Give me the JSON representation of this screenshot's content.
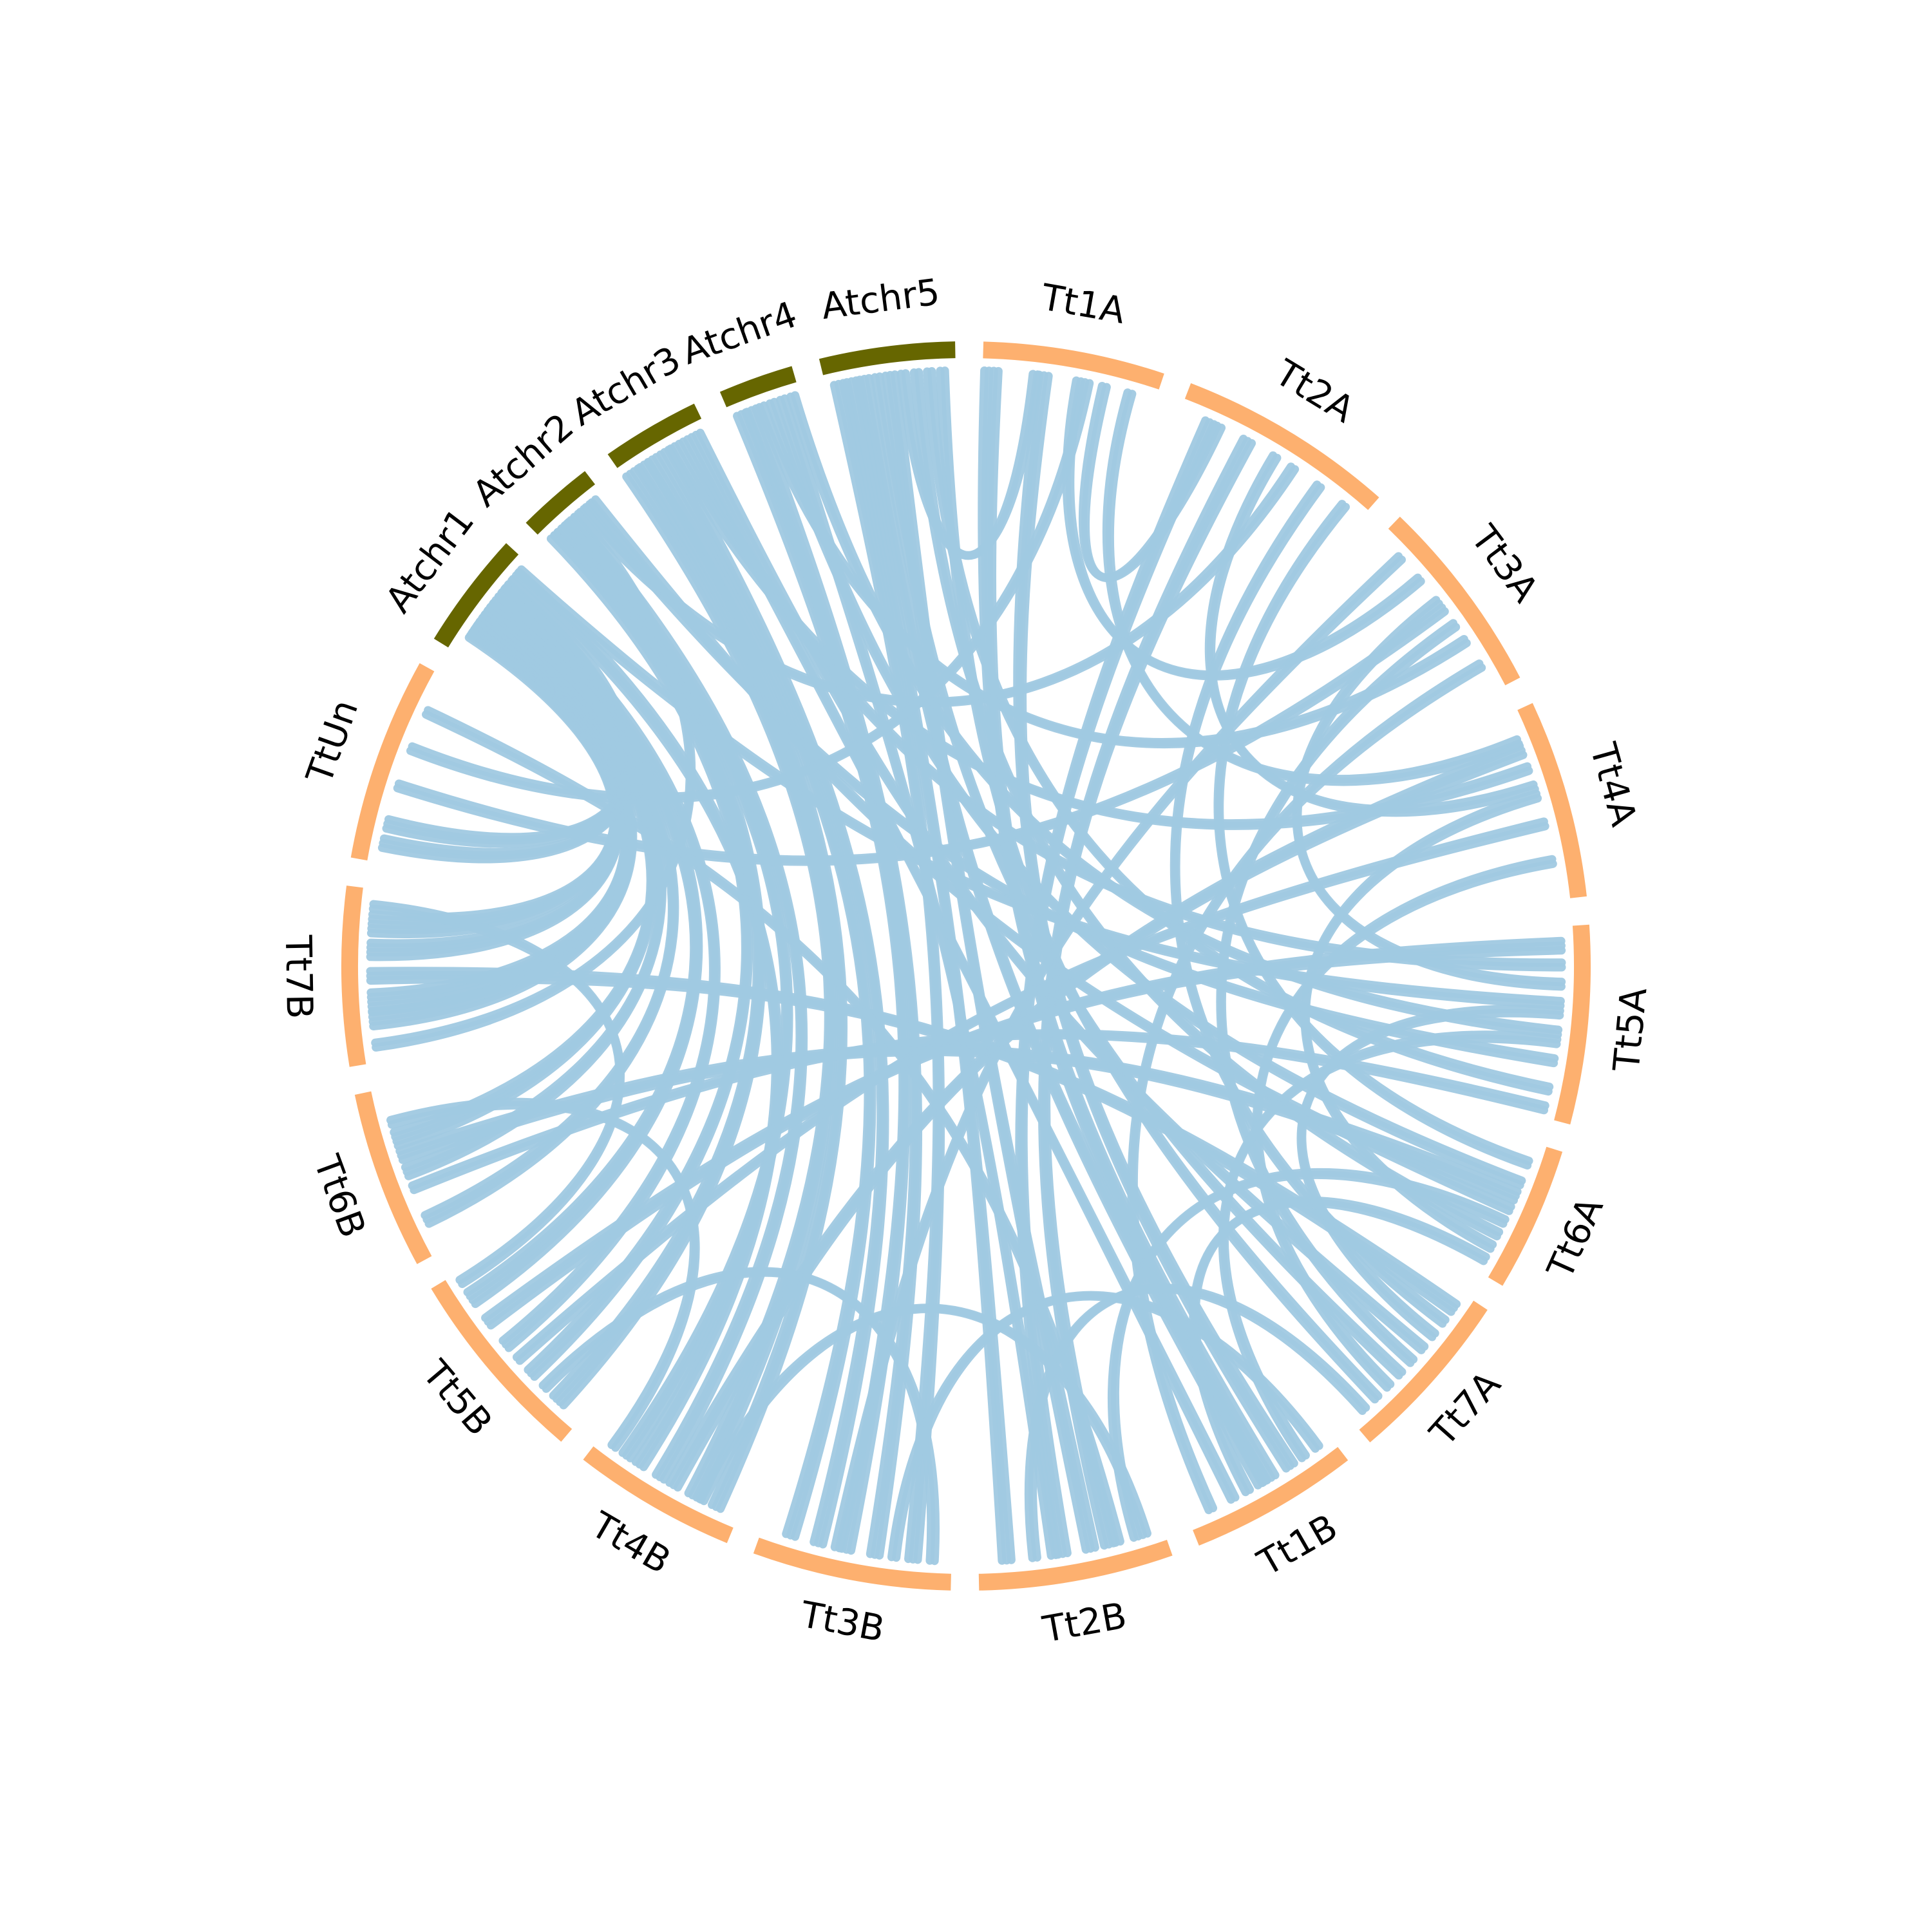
{
  "colors": {
    "atchr": "#666600",
    "tt": "#fdb06f",
    "link": "#a0c9e1",
    "label": "#000000"
  },
  "segments": [
    {
      "id": "Atchr1",
      "label": "Atchr1",
      "group": "atchr",
      "start": 301.6,
      "end": 312.6
    },
    {
      "id": "Atchr2",
      "label": "Atchr2",
      "group": "atchr",
      "start": 315.2,
      "end": 322.4
    },
    {
      "id": "Atchr3",
      "label": "Atchr3",
      "group": "atchr",
      "start": 325.0,
      "end": 334.2
    },
    {
      "id": "Atchr4",
      "label": "Atchr4",
      "group": "atchr",
      "start": 336.8,
      "end": 343.8
    },
    {
      "id": "Atchr5",
      "label": "Atchr5",
      "group": "atchr",
      "start": 346.4,
      "end": 359.0
    },
    {
      "id": "Tt1A",
      "label": "Tt1A",
      "group": "tt",
      "start": 1.6,
      "end": 18.5
    },
    {
      "id": "Tt2A",
      "label": "Tt2A",
      "group": "tt",
      "start": 21.1,
      "end": 41.4
    },
    {
      "id": "Tt3A",
      "label": "Tt3A",
      "group": "tt",
      "start": 44.0,
      "end": 62.5
    },
    {
      "id": "Tt4A",
      "label": "Tt4A",
      "group": "tt",
      "start": 65.1,
      "end": 83.6
    },
    {
      "id": "Tt5A",
      "label": "Tt5A",
      "group": "tt",
      "start": 86.2,
      "end": 104.7
    },
    {
      "id": "Tt6A",
      "label": "Tt6A",
      "group": "tt",
      "start": 107.3,
      "end": 120.8
    },
    {
      "id": "Tt7A",
      "label": "Tt7A",
      "group": "tt",
      "start": 123.4,
      "end": 139.7
    },
    {
      "id": "Tt1B",
      "label": "Tt1B",
      "group": "tt",
      "start": 142.3,
      "end": 158.1
    },
    {
      "id": "Tt2B",
      "label": "Tt2B",
      "group": "tt",
      "start": 160.7,
      "end": 178.8
    },
    {
      "id": "Tt3B",
      "label": "Tt3B",
      "group": "tt",
      "start": 181.4,
      "end": 199.9
    },
    {
      "id": "Tt4B",
      "label": "Tt4B",
      "group": "tt",
      "start": 202.5,
      "end": 217.8
    },
    {
      "id": "Tt5B",
      "label": "Tt5B",
      "group": "tt",
      "start": 220.4,
      "end": 238.9
    },
    {
      "id": "Tt6B",
      "label": "Tt6B",
      "group": "tt",
      "start": 241.5,
      "end": 258.1
    },
    {
      "id": "Tt7B",
      "label": "Tt7B",
      "group": "tt",
      "start": 260.7,
      "end": 277.4
    },
    {
      "id": "TtUn",
      "label": "TtUn",
      "group": "tt",
      "start": 280.0,
      "end": 299.0
    }
  ],
  "links": [
    [
      {
        "seg": "Atchr1",
        "pos": 0.25
      },
      {
        "seg": "Tt7B",
        "pos": 0.8
      },
      5
    ],
    [
      {
        "seg": "Atchr1",
        "pos": 0.25
      },
      {
        "seg": "Tt7B",
        "pos": 0.65
      },
      4
    ],
    [
      {
        "seg": "Atchr1",
        "pos": 0.3
      },
      {
        "seg": "Tt7B",
        "pos": 0.35
      },
      5
    ],
    [
      {
        "seg": "Atchr1",
        "pos": 0.35
      },
      {
        "seg": "Tt7B",
        "pos": 0.25
      },
      4
    ],
    [
      {
        "seg": "Atchr1",
        "pos": 0.4
      },
      {
        "seg": "Tt6B",
        "pos": 0.7
      },
      4
    ],
    [
      {
        "seg": "Atchr1",
        "pos": 0.45
      },
      {
        "seg": "Tt6B",
        "pos": 0.5
      },
      3
    ],
    [
      {
        "seg": "Atchr1",
        "pos": 0.5
      },
      {
        "seg": "Tt6B",
        "pos": 0.2
      },
      3
    ],
    [
      {
        "seg": "Atchr1",
        "pos": 0.55
      },
      {
        "seg": "Tt5B",
        "pos": 0.85
      },
      4
    ],
    [
      {
        "seg": "Atchr1",
        "pos": 0.65
      },
      {
        "seg": "Tt5B",
        "pos": 0.55
      },
      3
    ],
    [
      {
        "seg": "Atchr1",
        "pos": 0.7
      },
      {
        "seg": "TtUn",
        "pos": 0.2
      },
      3
    ],
    [
      {
        "seg": "Atchr1",
        "pos": 0.75
      },
      {
        "seg": "TtUn",
        "pos": 0.1
      },
      3
    ],
    [
      {
        "seg": "Atchr1",
        "pos": 0.85
      },
      {
        "seg": "Tt4B",
        "pos": 0.7
      },
      3
    ],
    [
      {
        "seg": "Atchr1",
        "pos": 0.9
      },
      {
        "seg": "Tt5A",
        "pos": 0.4
      },
      2
    ],
    [
      {
        "seg": "Atchr2",
        "pos": 0.15
      },
      {
        "seg": "Tt5B",
        "pos": 0.35
      },
      3
    ],
    [
      {
        "seg": "Atchr2",
        "pos": 0.25
      },
      {
        "seg": "Tt5B",
        "pos": 0.15
      },
      4
    ],
    [
      {
        "seg": "Atchr2",
        "pos": 0.35
      },
      {
        "seg": "Tt4B",
        "pos": 0.8
      },
      3
    ],
    [
      {
        "seg": "Atchr2",
        "pos": 0.45
      },
      {
        "seg": "Tt4B",
        "pos": 0.55
      },
      3
    ],
    [
      {
        "seg": "Atchr2",
        "pos": 0.55
      },
      {
        "seg": "Tt7B",
        "pos": 0.1
      },
      2
    ],
    [
      {
        "seg": "Atchr2",
        "pos": 0.65
      },
      {
        "seg": "Tt2A",
        "pos": 0.6
      },
      2
    ],
    [
      {
        "seg": "Atchr2",
        "pos": 0.75
      },
      {
        "seg": "Tt5A",
        "pos": 0.7
      },
      2
    ],
    [
      {
        "seg": "Atchr2",
        "pos": 0.85
      },
      {
        "seg": "Tt6A",
        "pos": 0.5
      },
      2
    ],
    [
      {
        "seg": "Atchr3",
        "pos": 0.1
      },
      {
        "seg": "Tt4B",
        "pos": 0.3
      },
      4
    ],
    [
      {
        "seg": "Atchr3",
        "pos": 0.25
      },
      {
        "seg": "Tt4B",
        "pos": 0.15
      },
      3
    ],
    [
      {
        "seg": "Atchr3",
        "pos": 0.35
      },
      {
        "seg": "Tt3B",
        "pos": 0.85
      },
      3
    ],
    [
      {
        "seg": "Atchr3",
        "pos": 0.5
      },
      {
        "seg": "Tt3B",
        "pos": 0.7
      },
      3
    ],
    [
      {
        "seg": "Atchr3",
        "pos": 0.6
      },
      {
        "seg": "Tt4A",
        "pos": 0.3
      },
      2
    ],
    [
      {
        "seg": "Atchr3",
        "pos": 0.7
      },
      {
        "seg": "Tt5A",
        "pos": 0.2
      },
      2
    ],
    [
      {
        "seg": "Atchr3",
        "pos": 0.8
      },
      {
        "seg": "Tt1B",
        "pos": 0.7
      },
      2
    ],
    [
      {
        "seg": "Atchr3",
        "pos": 0.9
      },
      {
        "seg": "Tt7A",
        "pos": 0.4
      },
      2
    ],
    [
      {
        "seg": "Atchr4",
        "pos": 0.15
      },
      {
        "seg": "Tt3B",
        "pos": 0.55
      },
      3
    ],
    [
      {
        "seg": "Atchr4",
        "pos": 0.3
      },
      {
        "seg": "Tt3B",
        "pos": 0.4
      },
      3
    ],
    [
      {
        "seg": "Atchr4",
        "pos": 0.45
      },
      {
        "seg": "Tt3A",
        "pos": 0.7
      },
      2
    ],
    [
      {
        "seg": "Atchr4",
        "pos": 0.6
      },
      {
        "seg": "Tt6A",
        "pos": 0.3
      },
      2
    ],
    [
      {
        "seg": "Atchr4",
        "pos": 0.75
      },
      {
        "seg": "Tt2B",
        "pos": 0.6
      },
      2
    ],
    [
      {
        "seg": "Atchr4",
        "pos": 0.9
      },
      {
        "seg": "Tt5A",
        "pos": 0.55
      },
      2
    ],
    [
      {
        "seg": "Atchr5",
        "pos": 0.1
      },
      {
        "seg": "Tt3B",
        "pos": 0.2
      },
      3
    ],
    [
      {
        "seg": "Atchr5",
        "pos": 0.2
      },
      {
        "seg": "Tt2B",
        "pos": 0.85
      },
      3
    ],
    [
      {
        "seg": "Atchr5",
        "pos": 0.3
      },
      {
        "seg": "Tt1B",
        "pos": 0.5
      },
      3
    ],
    [
      {
        "seg": "Atchr5",
        "pos": 0.4
      },
      {
        "seg": "Tt7A",
        "pos": 0.6
      },
      2
    ],
    [
      {
        "seg": "Atchr5",
        "pos": 0.5
      },
      {
        "seg": "Tt2B",
        "pos": 0.4
      },
      3
    ],
    [
      {
        "seg": "Atchr5",
        "pos": 0.6
      },
      {
        "seg": "Tt1A",
        "pos": 0.3
      },
      2
    ],
    [
      {
        "seg": "Atchr5",
        "pos": 0.7
      },
      {
        "seg": "Tt6A",
        "pos": 0.7
      },
      2
    ],
    [
      {
        "seg": "Atchr5",
        "pos": 0.8
      },
      {
        "seg": "Tt5A",
        "pos": 0.85
      },
      2
    ],
    [
      {
        "seg": "Atchr5",
        "pos": 0.9
      },
      {
        "seg": "Tt7A",
        "pos": 0.8
      },
      2
    ],
    [
      {
        "seg": "Tt1A",
        "pos": 0.05
      },
      {
        "seg": "Tt1B",
        "pos": 0.45
      },
      4
    ],
    [
      {
        "seg": "Tt1A",
        "pos": 0.35
      },
      {
        "seg": "Tt1B",
        "pos": 0.3
      },
      3
    ],
    [
      {
        "seg": "Tt1A",
        "pos": 0.55
      },
      {
        "seg": "Tt3A",
        "pos": 0.3
      },
      2
    ],
    [
      {
        "seg": "Tt1A",
        "pos": 0.7
      },
      {
        "seg": "Tt2A",
        "pos": 0.2
      },
      2
    ],
    [
      {
        "seg": "Tt1A",
        "pos": 0.85
      },
      {
        "seg": "Tt4A",
        "pos": 0.15
      },
      2
    ],
    [
      {
        "seg": "Tt2A",
        "pos": 0.15
      },
      {
        "seg": "Tt2B",
        "pos": 0.55
      },
      3
    ],
    [
      {
        "seg": "Tt2A",
        "pos": 0.35
      },
      {
        "seg": "Tt2B",
        "pos": 0.3
      },
      3
    ],
    [
      {
        "seg": "Tt2A",
        "pos": 0.5
      },
      {
        "seg": "Tt4A",
        "pos": 0.4
      },
      2
    ],
    [
      {
        "seg": "Tt2A",
        "pos": 0.75
      },
      {
        "seg": "Tt7A",
        "pos": 0.2
      },
      2
    ],
    [
      {
        "seg": "Tt2A",
        "pos": 0.9
      },
      {
        "seg": "Tt6A",
        "pos": 0.15
      },
      2
    ],
    [
      {
        "seg": "Tt3A",
        "pos": 0.15
      },
      {
        "seg": "Tt3B",
        "pos": 0.6
      },
      2
    ],
    [
      {
        "seg": "Tt3A",
        "pos": 0.45
      },
      {
        "seg": "Tt5A",
        "pos": 0.3
      },
      2
    ],
    [
      {
        "seg": "Tt3A",
        "pos": 0.6
      },
      {
        "seg": "Tt7A",
        "pos": 0.5
      },
      2
    ],
    [
      {
        "seg": "Tt3A",
        "pos": 0.85
      },
      {
        "seg": "Tt1B",
        "pos": 0.85
      },
      2
    ],
    [
      {
        "seg": "Tt4A",
        "pos": 0.2
      },
      {
        "seg": "Tt4B",
        "pos": 0.45
      },
      3
    ],
    [
      {
        "seg": "Tt4A",
        "pos": 0.45
      },
      {
        "seg": "Tt6A",
        "pos": 0.8
      },
      2
    ],
    [
      {
        "seg": "Tt4A",
        "pos": 0.6
      },
      {
        "seg": "Tt5B",
        "pos": 0.45
      },
      2
    ],
    [
      {
        "seg": "Tt4A",
        "pos": 0.8
      },
      {
        "seg": "Tt7A",
        "pos": 0.7
      },
      2
    ],
    [
      {
        "seg": "Tt5A",
        "pos": 0.1
      },
      {
        "seg": "Tt5B",
        "pos": 0.7
      },
      3
    ],
    [
      {
        "seg": "Tt5A",
        "pos": 0.45
      },
      {
        "seg": "Tt7A",
        "pos": 0.3
      },
      2
    ],
    [
      {
        "seg": "Tt5A",
        "pos": 0.6
      },
      {
        "seg": "Tt1B",
        "pos": 0.2
      },
      2
    ],
    [
      {
        "seg": "Tt5A",
        "pos": 0.95
      },
      {
        "seg": "Tt6B",
        "pos": 0.4
      },
      2
    ],
    [
      {
        "seg": "Tt6A",
        "pos": 0.4
      },
      {
        "seg": "Tt6B",
        "pos": 0.6
      },
      3
    ],
    [
      {
        "seg": "Tt6A",
        "pos": 0.6
      },
      {
        "seg": "Tt2B",
        "pos": 0.15
      },
      2
    ],
    [
      {
        "seg": "Tt6A",
        "pos": 0.9
      },
      {
        "seg": "Tt1B",
        "pos": 0.6
      },
      2
    ],
    [
      {
        "seg": "Tt7A",
        "pos": 0.1
      },
      {
        "seg": "Tt7B",
        "pos": 0.5
      },
      3
    ],
    [
      {
        "seg": "Tt7A",
        "pos": 0.9
      },
      {
        "seg": "Tt2B",
        "pos": 0.7
      },
      2
    ],
    [
      {
        "seg": "Tt1B",
        "pos": 0.1
      },
      {
        "seg": "Tt3B",
        "pos": 0.3
      },
      2
    ],
    [
      {
        "seg": "Tt2B",
        "pos": 0.1
      },
      {
        "seg": "Tt4B",
        "pos": 0.25
      },
      2
    ],
    [
      {
        "seg": "Tt3B",
        "pos": 0.1
      },
      {
        "seg": "Tt5B",
        "pos": 0.25
      },
      2
    ],
    [
      {
        "seg": "Tt4B",
        "pos": 0.9
      },
      {
        "seg": "Tt6B",
        "pos": 0.8
      },
      2
    ],
    [
      {
        "seg": "Tt5B",
        "pos": 0.95
      },
      {
        "seg": "Tt7B",
        "pos": 0.9
      },
      2
    ],
    [
      {
        "seg": "TtUn",
        "pos": 0.4
      },
      {
        "seg": "Tt3A",
        "pos": 0.5
      },
      2
    ],
    [
      {
        "seg": "TtUn",
        "pos": 0.6
      },
      {
        "seg": "Tt1A",
        "pos": 0.6
      },
      2
    ],
    [
      {
        "seg": "TtUn",
        "pos": 0.8
      },
      {
        "seg": "Tt2B",
        "pos": 0.25
      },
      2
    ]
  ]
}
